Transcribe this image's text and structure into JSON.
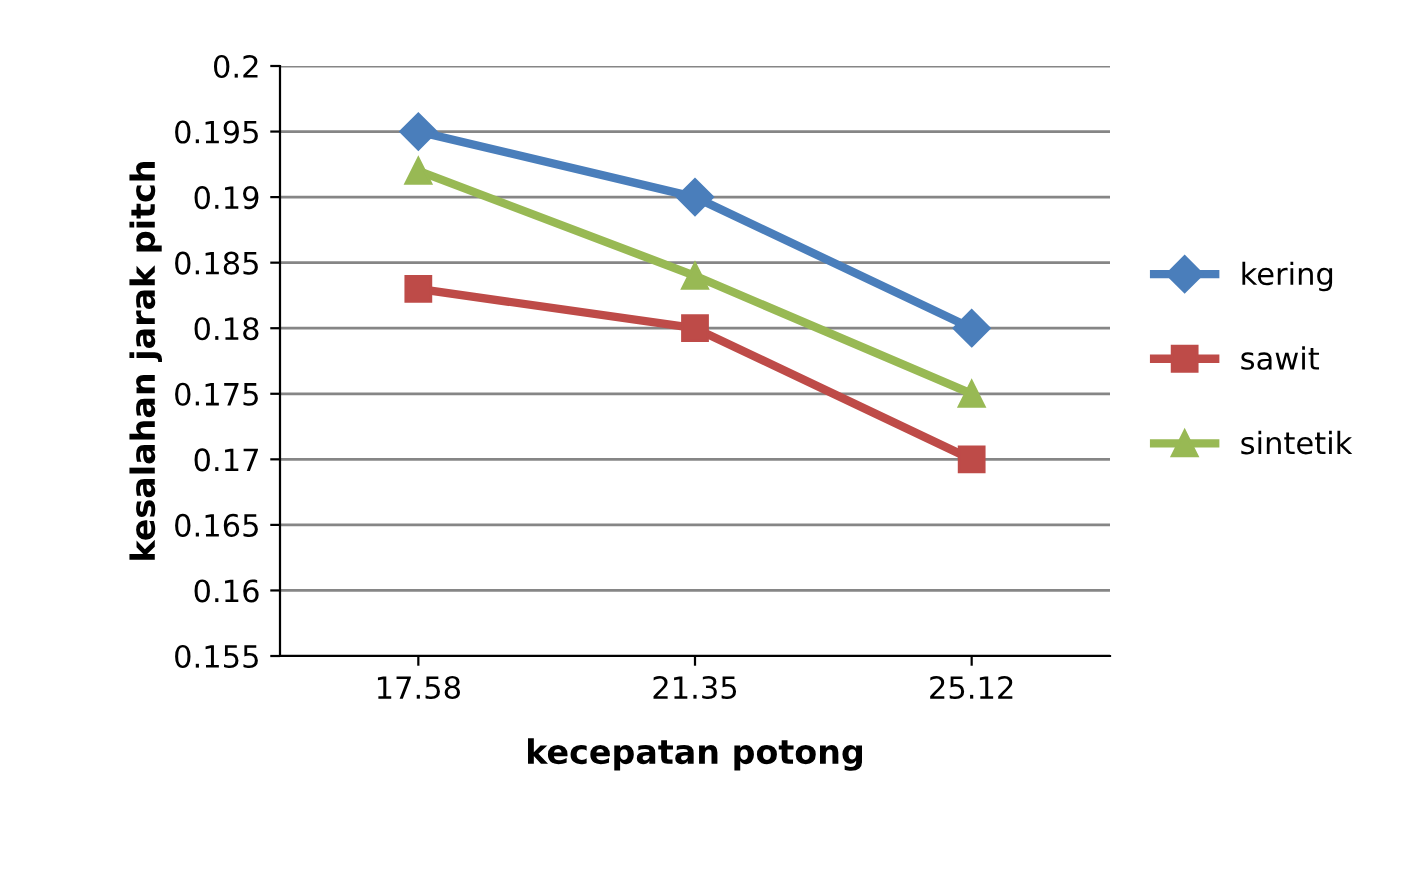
{
  "chart_data": {
    "type": "line",
    "xlabel": "kecepatan potong",
    "ylabel": "kesalahan jarak pitch",
    "categories": [
      "17.58",
      "21.35",
      "25.12"
    ],
    "series": [
      {
        "name": "kering",
        "color": "#4a7ebb",
        "marker": "diamond",
        "values": [
          0.195,
          0.19,
          0.18
        ]
      },
      {
        "name": "sawit",
        "color": "#be4b48",
        "marker": "square",
        "values": [
          0.183,
          0.18,
          0.17
        ]
      },
      {
        "name": "sintetik",
        "color": "#98b954",
        "marker": "triangle",
        "values": [
          0.192,
          0.184,
          0.175
        ]
      }
    ],
    "ylim": [
      0.155,
      0.2
    ],
    "yticks": [
      0.155,
      0.16,
      0.165,
      0.17,
      0.175,
      0.18,
      0.185,
      0.19,
      0.195,
      0.2
    ],
    "grid": "y",
    "legend": "right",
    "line_style": "solid"
  }
}
